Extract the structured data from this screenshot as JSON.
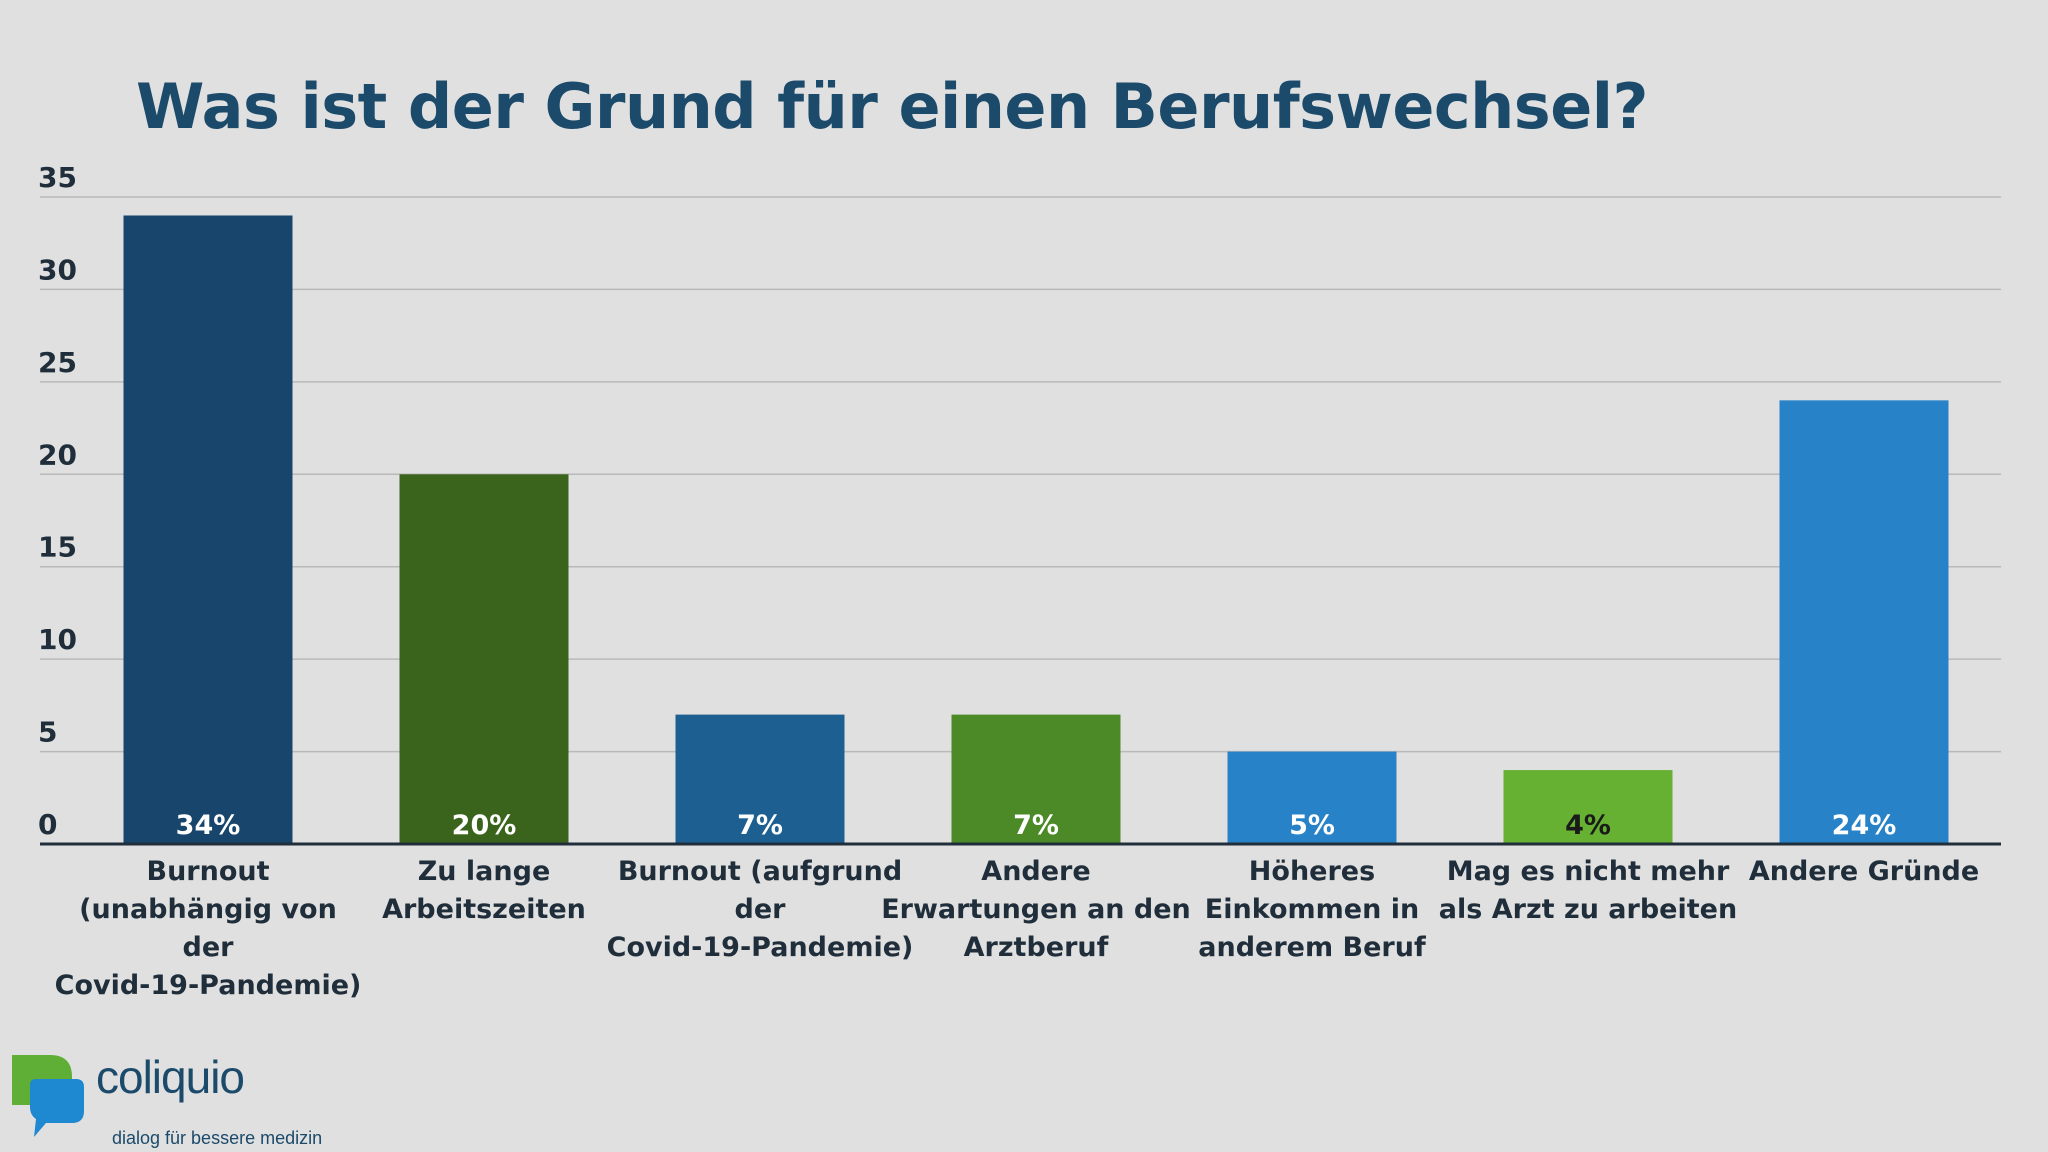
{
  "chart_data": {
    "type": "bar",
    "title": "Was ist der Grund für einen Berufswechsel?",
    "categories": [
      "Burnout (unabhängig von der Covid-19-Pandemie)",
      "Zu lange Arbeitszeiten",
      "Burnout (aufgrund der Covid-19-Pandemie)",
      "Andere Erwartungen an den Arztberuf",
      "Höheres Einkommen in anderem Beruf",
      "Mag es nicht mehr als Arzt zu arbeiten",
      "Andere Gründe"
    ],
    "category_lines": [
      [
        "Burnout",
        "(unabhängig von",
        "der",
        "Covid-19-Pandemie)"
      ],
      [
        "Zu lange",
        "Arbeitszeiten"
      ],
      [
        "Burnout (aufgrund",
        "der",
        "Covid-19-Pandemie)"
      ],
      [
        "Andere",
        "Erwartungen an den",
        "Arztberuf"
      ],
      [
        "Höheres",
        "Einkommen in",
        "anderem Beruf"
      ],
      [
        "Mag es nicht mehr",
        "als Arzt zu arbeiten"
      ],
      [
        "Andere Gründe"
      ]
    ],
    "values": [
      34,
      20,
      7,
      7,
      5,
      4,
      24
    ],
    "data_labels": [
      "34%",
      "20%",
      "7%",
      "7%",
      "5%",
      "4%",
      "24%"
    ],
    "colors": [
      "#17456b",
      "#3a641c",
      "#1d5f91",
      "#4b8a26",
      "#2782c8",
      "#66b032",
      "#2782c8"
    ],
    "label_colors": [
      "#ffffff",
      "#ffffff",
      "#ffffff",
      "#ffffff",
      "#ffffff",
      "#1a1a1a",
      "#ffffff"
    ],
    "ylim": [
      0,
      35
    ],
    "yticks": [
      0,
      5,
      10,
      15,
      20,
      25,
      30,
      35
    ],
    "grid": true,
    "xlabel": "",
    "ylabel": ""
  },
  "logo": {
    "name": "coliquio",
    "tagline": "dialog für bessere medizin",
    "color_green": "#5fae35",
    "color_blue": "#1e88d0"
  }
}
